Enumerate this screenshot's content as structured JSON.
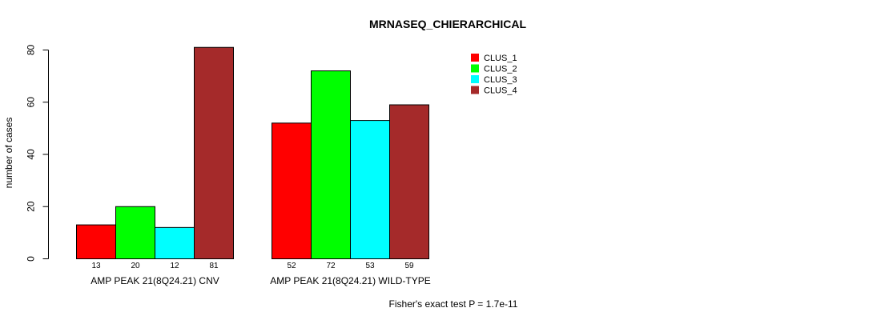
{
  "chart_data": {
    "type": "bar",
    "title": "MRNASEQ_CHIERARCHICAL",
    "ylabel": "number of cases",
    "xlabel": "",
    "ylim": [
      0,
      80
    ],
    "yticks": [
      0,
      20,
      40,
      60,
      80
    ],
    "categories": [
      "AMP PEAK 21(8Q24.21) CNV",
      "AMP PEAK 21(8Q24.21) WILD-TYPE"
    ],
    "series": [
      {
        "name": "CLUS_1",
        "color": "#ff0000",
        "values": [
          13,
          52
        ]
      },
      {
        "name": "CLUS_2",
        "color": "#00ff00",
        "values": [
          20,
          72
        ]
      },
      {
        "name": "CLUS_3",
        "color": "#00ffff",
        "values": [
          12,
          53
        ]
      },
      {
        "name": "CLUS_4",
        "color": "#a52a2a",
        "values": [
          81,
          59
        ]
      }
    ],
    "bar_labels": [
      [
        "13",
        "20",
        "12",
        "81"
      ],
      [
        "52",
        "72",
        "53",
        "59"
      ]
    ],
    "legend_position": "top-right",
    "grid": false,
    "footnote": "Fisher's exact test P = 1.7e-11"
  }
}
